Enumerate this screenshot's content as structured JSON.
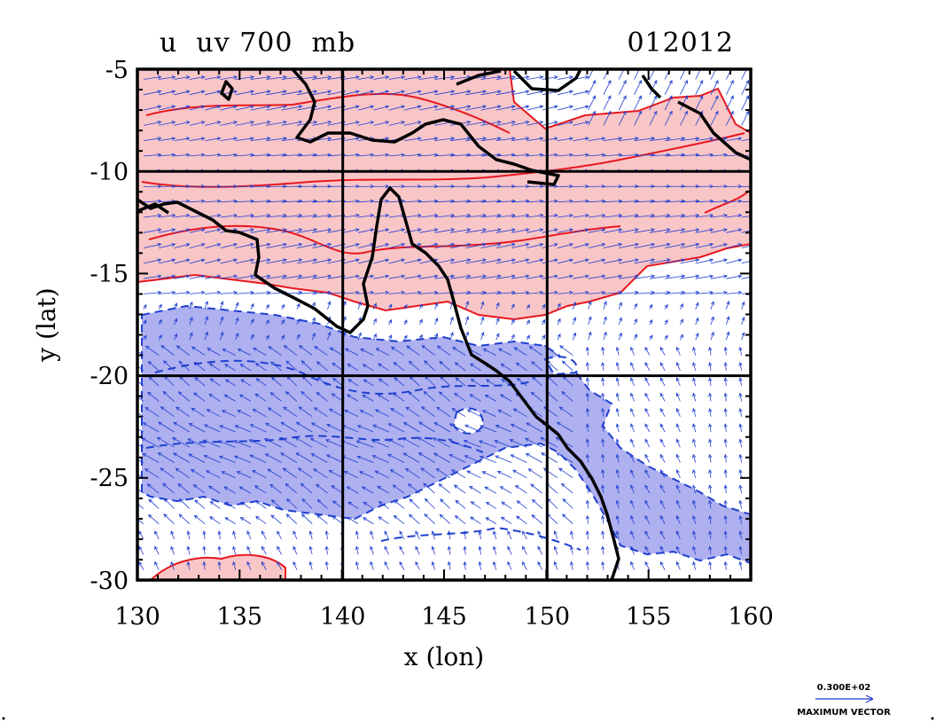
{
  "chart_data": {
    "type": "contour",
    "title": "u  uv 700  mb",
    "date_label": "012012",
    "xlabel": "x (lon)",
    "ylabel": "y (lat)",
    "xlim": [
      130,
      160
    ],
    "ylim": [
      -30,
      -5
    ],
    "xticks": [
      "130",
      "135",
      "140",
      "145",
      "150",
      "155",
      "160"
    ],
    "yticks": [
      "-5",
      "-10",
      "-15",
      "-20",
      "-25",
      "-30"
    ],
    "grid_lines": {
      "x": [
        140,
        150
      ],
      "y": [
        -10,
        -20
      ]
    },
    "overlay": "wind vectors",
    "vector_key": {
      "value": "0.300E+02",
      "label": "MAXIMUM VECTOR"
    },
    "colors": {
      "positive_fill": "#f9c6c8",
      "positive_line": "#e8181e",
      "negative_fill": "#aeb0f0",
      "negative_line": "#1f3fcf",
      "vectors": "#1f3fcf",
      "coastline": "#000000"
    }
  }
}
